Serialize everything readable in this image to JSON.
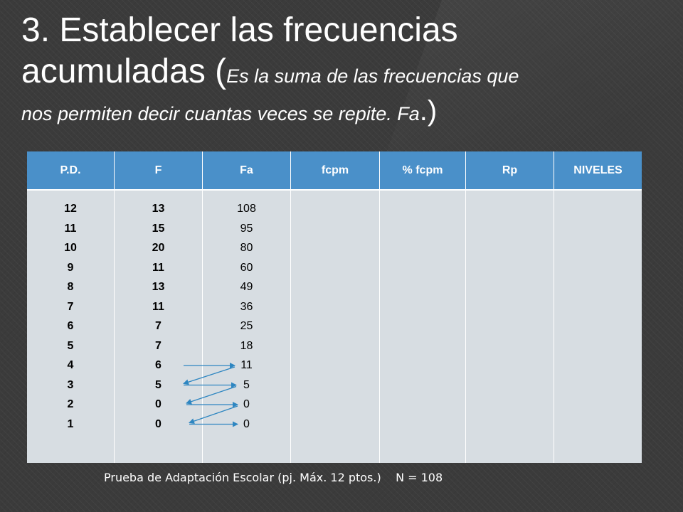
{
  "title": {
    "line1": "3. Establecer las frecuencias",
    "line2_main": "acumuladas ",
    "paren_open": "(",
    "line2_italic": "Es la suma de las frecuencias que",
    "line3_italic": "nos permiten decir cuantas veces se repite. Fa",
    "line3_end": ".",
    "paren_close": ")"
  },
  "table": {
    "headers": [
      "P.D.",
      "F",
      "Fa",
      "fcpm",
      "% fcpm",
      "Rp",
      "NIVELES"
    ],
    "pd": [
      "12",
      "11",
      "10",
      "9",
      "8",
      "7",
      "6",
      "5",
      "4",
      "3",
      "2",
      "1"
    ],
    "f": [
      "13",
      "15",
      "20",
      "11",
      "13",
      "11",
      "7",
      "7",
      "6",
      "5",
      "0",
      "0"
    ],
    "fa": [
      "108",
      "95",
      "80",
      "60",
      "49",
      "36",
      "25",
      "18",
      "11",
      "5",
      "0",
      "0"
    ]
  },
  "arrow_color": "#2e86c1",
  "footer": "Prueba de Adaptación Escolar (pj. Máx. 12 ptos.)    N = 108"
}
